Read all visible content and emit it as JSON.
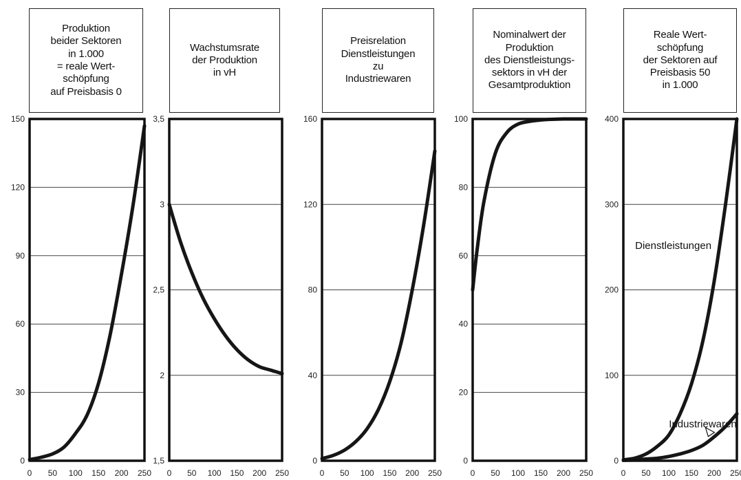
{
  "chart_data": [
    {
      "type": "line",
      "title": "Produktion\nbeider Sektoren\nin 1.000\n= reale Wert-\nschöpfung\nauf Preisbasis 0",
      "ylim": [
        0,
        150
      ],
      "yticks": [
        0,
        30,
        60,
        90,
        120,
        150
      ],
      "ytick_labels": [
        "0",
        "30",
        "60",
        "90",
        "120",
        "150"
      ],
      "xlim": [
        0,
        250
      ],
      "xticks": [
        0,
        50,
        100,
        150,
        200,
        250
      ],
      "series": [
        {
          "x": [
            0,
            25,
            50,
            75,
            100,
            125,
            150,
            175,
            200,
            225,
            250
          ],
          "y": [
            0.5,
            1.5,
            3,
            6,
            12,
            20,
            34,
            55,
            82,
            112,
            147
          ]
        }
      ],
      "annotations": []
    },
    {
      "type": "line",
      "title": "Wachstumsrate\nder Produktion\nin vH",
      "ylim": [
        1.5,
        3.5
      ],
      "yticks": [
        1.5,
        2,
        2.5,
        3,
        3.5
      ],
      "ytick_labels": [
        "1,5",
        "2",
        "2,5",
        "3",
        "3,5"
      ],
      "xlim": [
        0,
        250
      ],
      "xticks": [
        0,
        50,
        100,
        150,
        200,
        250
      ],
      "series": [
        {
          "x": [
            0,
            25,
            50,
            75,
            100,
            125,
            150,
            175,
            200,
            225,
            250
          ],
          "y": [
            3.0,
            2.78,
            2.6,
            2.45,
            2.33,
            2.23,
            2.15,
            2.09,
            2.05,
            2.03,
            2.01
          ]
        }
      ],
      "annotations": []
    },
    {
      "type": "line",
      "title": "Preisrelation\nDienstleistungen\nzu\nIndustriewaren",
      "ylim": [
        0,
        160
      ],
      "yticks": [
        0,
        40,
        80,
        120,
        160
      ],
      "ytick_labels": [
        "0",
        "40",
        "80",
        "120",
        "160"
      ],
      "xlim": [
        0,
        250
      ],
      "xticks": [
        0,
        50,
        100,
        150,
        200,
        250
      ],
      "series": [
        {
          "x": [
            0,
            25,
            50,
            75,
            100,
            125,
            150,
            175,
            200,
            225,
            250
          ],
          "y": [
            1,
            2.5,
            5,
            9,
            15,
            24,
            37,
            55,
            80,
            110,
            145
          ]
        }
      ],
      "annotations": []
    },
    {
      "type": "line",
      "title": "Nominalwert der\nProduktion\ndes Dienstleistungs-\nsektors in vH der\nGesamtproduktion",
      "ylim": [
        0,
        100
      ],
      "yticks": [
        0,
        20,
        40,
        60,
        80,
        100
      ],
      "ytick_labels": [
        "0",
        "20",
        "40",
        "60",
        "80",
        "100"
      ],
      "xlim": [
        0,
        250
      ],
      "xticks": [
        0,
        50,
        100,
        150,
        200,
        250
      ],
      "series": [
        {
          "x": [
            0,
            10,
            25,
            50,
            75,
            100,
            125,
            150,
            175,
            200,
            250
          ],
          "y": [
            50,
            62,
            76,
            90,
            96,
            98.5,
            99.3,
            99.7,
            99.9,
            100,
            100
          ]
        }
      ],
      "annotations": []
    },
    {
      "type": "line",
      "title": "Reale Wert-\nschöpfung\nder Sektoren auf\nPreisbasis 50\nin 1.000",
      "ylim": [
        0,
        400
      ],
      "yticks": [
        0,
        100,
        200,
        300,
        400
      ],
      "ytick_labels": [
        "0",
        "100",
        "200",
        "300",
        "400"
      ],
      "xlim": [
        0,
        250
      ],
      "xticks": [
        0,
        50,
        100,
        150,
        200,
        250
      ],
      "series": [
        {
          "name": "Dienstleistungen",
          "x": [
            0,
            25,
            50,
            75,
            100,
            125,
            150,
            175,
            200,
            225,
            250
          ],
          "y": [
            1,
            3,
            8,
            17,
            30,
            55,
            90,
            140,
            210,
            300,
            400
          ]
        },
        {
          "name": "Industriewaren",
          "x": [
            0,
            25,
            50,
            75,
            100,
            125,
            150,
            175,
            200,
            225,
            250
          ],
          "y": [
            0.5,
            1,
            2,
            3,
            5,
            8,
            12,
            18,
            28,
            40,
            55
          ]
        }
      ],
      "annotations": [
        {
          "text": "Dienstleistungen",
          "x": 110,
          "y": 248
        },
        {
          "text": "Industriewaren",
          "x": 175,
          "y": 39
        }
      ]
    }
  ]
}
